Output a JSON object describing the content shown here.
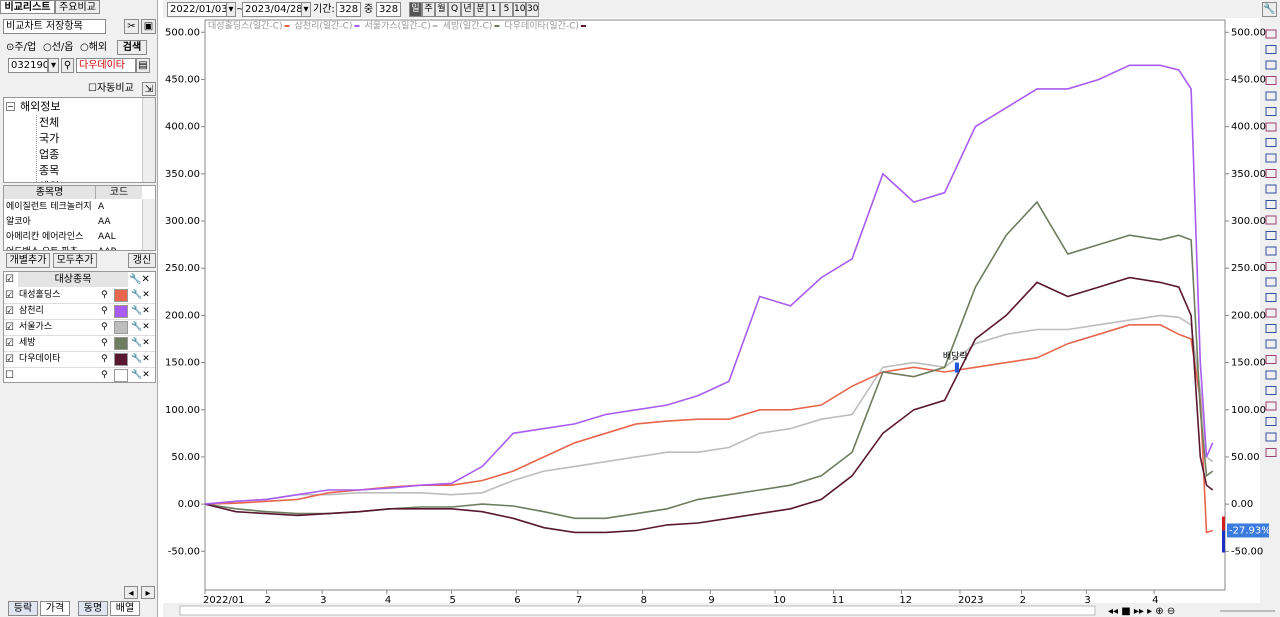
{
  "tabs": [
    "비교리스트",
    "주요비교"
  ],
  "saved_items": "비교차트 저장항목",
  "market_options": [
    "주/업",
    "선/옵",
    "해외"
  ],
  "search_button": "검색",
  "code": "032190",
  "code_name": "다우데이타",
  "auto_compare": "자동비교",
  "tree": {
    "root": "해외정보",
    "items": [
      "전체",
      "국가",
      "업종",
      "종목",
      "해외DR"
    ]
  },
  "symbol_table": {
    "columns": [
      "종목명",
      "코드"
    ],
    "rows": [
      [
        "에이질런트 테크놀러지",
        "A"
      ],
      [
        "알코아",
        "AA"
      ],
      [
        "아메리칸 에어라인스",
        "AAL"
      ],
      [
        "어드밴스 오토 파츠",
        "AAP"
      ]
    ]
  },
  "buttons": [
    "개별추가",
    "모두추가",
    "갱신"
  ],
  "target_list": {
    "header": "대상종목",
    "items": [
      "대성홀딩스",
      "삼천리",
      "서울가스",
      "세방",
      "다우데이타"
    ]
  },
  "bottom_tabs": [
    "등락",
    "가격",
    "동명",
    "배열"
  ],
  "toolbar": {
    "start_date": "2022/01/03",
    "separator": "~",
    "end_date": "2023/04/28",
    "period_label": "기간:",
    "period": "328",
    "of_label": "중",
    "total": "328",
    "intervals": [
      "일",
      "주",
      "월",
      "Q",
      "년",
      "분",
      "1",
      "5",
      "10",
      "30"
    ]
  },
  "chart_data": {
    "type": "line",
    "x": [
      0,
      10,
      20,
      30,
      40,
      50,
      60,
      70,
      80,
      90,
      100,
      110,
      120,
      130,
      140,
      150,
      160,
      170,
      180,
      190,
      200,
      210,
      220,
      230,
      240,
      250,
      260,
      270,
      280,
      290,
      300,
      310,
      316,
      320,
      323,
      325,
      327
    ],
    "xlim": [
      0,
      331
    ],
    "xticks": [
      {
        "value": 0,
        "label": "2022/01"
      },
      {
        "value": 20,
        "label": "2"
      },
      {
        "value": 38,
        "label": "3"
      },
      {
        "value": 59,
        "label": "4"
      },
      {
        "value": 80,
        "label": "5"
      },
      {
        "value": 101,
        "label": "6"
      },
      {
        "value": 121,
        "label": "7"
      },
      {
        "value": 142,
        "label": "8"
      },
      {
        "value": 164,
        "label": "9"
      },
      {
        "value": 185,
        "label": "10"
      },
      {
        "value": 204,
        "label": "11"
      },
      {
        "value": 226,
        "label": "12"
      },
      {
        "value": 245,
        "label": "2023"
      },
      {
        "value": 265,
        "label": "2"
      },
      {
        "value": 286,
        "label": "3"
      },
      {
        "value": 308,
        "label": "4"
      }
    ],
    "ylim": [
      -91,
      513
    ],
    "yticks": [
      {
        "value": -50,
        "label": "-50.00"
      },
      {
        "value": 0,
        "label": "0.00"
      },
      {
        "value": 50,
        "label": "50.00"
      },
      {
        "value": 100,
        "label": "100.00"
      },
      {
        "value": 150,
        "label": "150.00"
      },
      {
        "value": 200,
        "label": "200.00"
      },
      {
        "value": 250,
        "label": "250.00"
      },
      {
        "value": 300,
        "label": "300.00"
      },
      {
        "value": 350,
        "label": "350.00"
      },
      {
        "value": 400,
        "label": "400.00"
      },
      {
        "value": 450,
        "label": "450.00"
      },
      {
        "value": 500,
        "label": "500.00"
      }
    ],
    "series": [
      {
        "name": "대성홀딩스(일간-C)",
        "color": "#e8664e",
        "values": [
          0,
          1,
          3,
          5,
          12,
          15,
          18,
          20,
          20,
          25,
          35,
          50,
          65,
          75,
          85,
          88,
          90,
          90,
          100,
          100,
          105,
          125,
          140,
          145,
          140,
          145,
          150,
          155,
          170,
          180,
          190,
          190,
          180,
          175,
          110,
          -30,
          -27.93
        ]
      },
      {
        "name": "삼천리(일간-C)",
        "color": "#a95cf2",
        "values": [
          0,
          3,
          5,
          10,
          15,
          15,
          17,
          20,
          22,
          40,
          75,
          80,
          85,
          95,
          100,
          105,
          115,
          130,
          220,
          210,
          240,
          260,
          350,
          320,
          330,
          400,
          420,
          440,
          440,
          450,
          465,
          465,
          460,
          440,
          150,
          50,
          65
        ]
      },
      {
        "name": "서울가스(일간-C)",
        "color": "#bdbdbd",
        "values": [
          0,
          3,
          5,
          10,
          10,
          12,
          12,
          12,
          10,
          12,
          25,
          35,
          40,
          45,
          50,
          55,
          55,
          60,
          75,
          80,
          90,
          95,
          145,
          150,
          145,
          170,
          180,
          185,
          185,
          190,
          195,
          200,
          198,
          190,
          120,
          50,
          45
        ]
      },
      {
        "name": "세방(일간-C)",
        "color": "#6e7d5f",
        "values": [
          0,
          -5,
          -8,
          -10,
          -10,
          -8,
          -5,
          -3,
          -3,
          0,
          -2,
          -8,
          -15,
          -15,
          -10,
          -5,
          5,
          10,
          15,
          20,
          30,
          55,
          140,
          135,
          145,
          230,
          285,
          320,
          265,
          275,
          285,
          280,
          285,
          280,
          100,
          30,
          35
        ]
      },
      {
        "name": "다우데이타(일간-C)",
        "color": "#5a1830",
        "values": [
          0,
          -8,
          -10,
          -12,
          -10,
          -8,
          -5,
          -5,
          -5,
          -8,
          -15,
          -25,
          -30,
          -30,
          -28,
          -22,
          -20,
          -15,
          -10,
          -5,
          5,
          30,
          75,
          100,
          110,
          175,
          200,
          235,
          220,
          230,
          240,
          235,
          230,
          200,
          50,
          20,
          15
        ]
      }
    ],
    "annotations": [
      {
        "text": "배당락",
        "x": 244,
        "y": 150
      }
    ],
    "current_value": {
      "value": -27.93,
      "label": "-27.93%"
    }
  }
}
